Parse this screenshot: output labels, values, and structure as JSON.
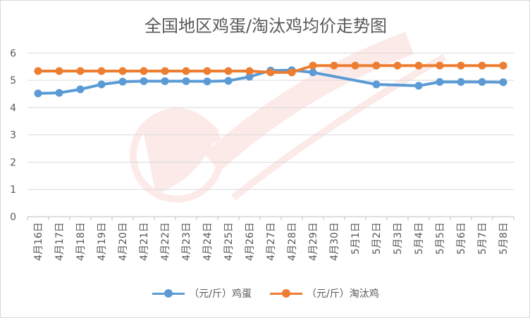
{
  "chart_data": {
    "type": "line",
    "title": "全国地区鸡蛋/淘汰鸡均价走势图",
    "categories": [
      "4月16日",
      "4月17日",
      "4月18日",
      "4月19日",
      "4月20日",
      "4月21日",
      "4月22日",
      "4月23日",
      "4月24日",
      "4月25日",
      "4月26日",
      "4月27日",
      "4月28日",
      "4月29日",
      "4月30日",
      "5月1日",
      "5月2日",
      "5月3日",
      "5月4日",
      "5月5日",
      "5月6日",
      "5月7日",
      "5月8日"
    ],
    "yticks": [
      "0",
      "1",
      "2",
      "3",
      "4",
      "5",
      "6"
    ],
    "ylim": [
      0,
      6.5
    ],
    "grid": true,
    "legend_position": "bottom",
    "series": [
      {
        "name": "（元/斤）鸡蛋",
        "color": "#5b9bd5",
        "values": [
          4.52,
          4.54,
          4.67,
          4.85,
          4.95,
          4.97,
          4.97,
          4.97,
          4.96,
          4.98,
          5.13,
          5.36,
          5.37,
          5.29,
          null,
          null,
          4.85,
          null,
          4.8,
          4.94,
          4.94,
          4.94,
          4.93
        ]
      },
      {
        "name": "（元/斤）淘汰鸡",
        "color": "#ed7d31",
        "values": [
          5.34,
          5.34,
          5.34,
          5.34,
          5.34,
          5.34,
          5.34,
          5.34,
          5.34,
          5.34,
          5.34,
          5.29,
          5.29,
          5.54,
          5.54,
          5.54,
          5.54,
          5.54,
          5.54,
          5.54,
          5.54,
          5.54,
          5.54
        ]
      }
    ]
  }
}
